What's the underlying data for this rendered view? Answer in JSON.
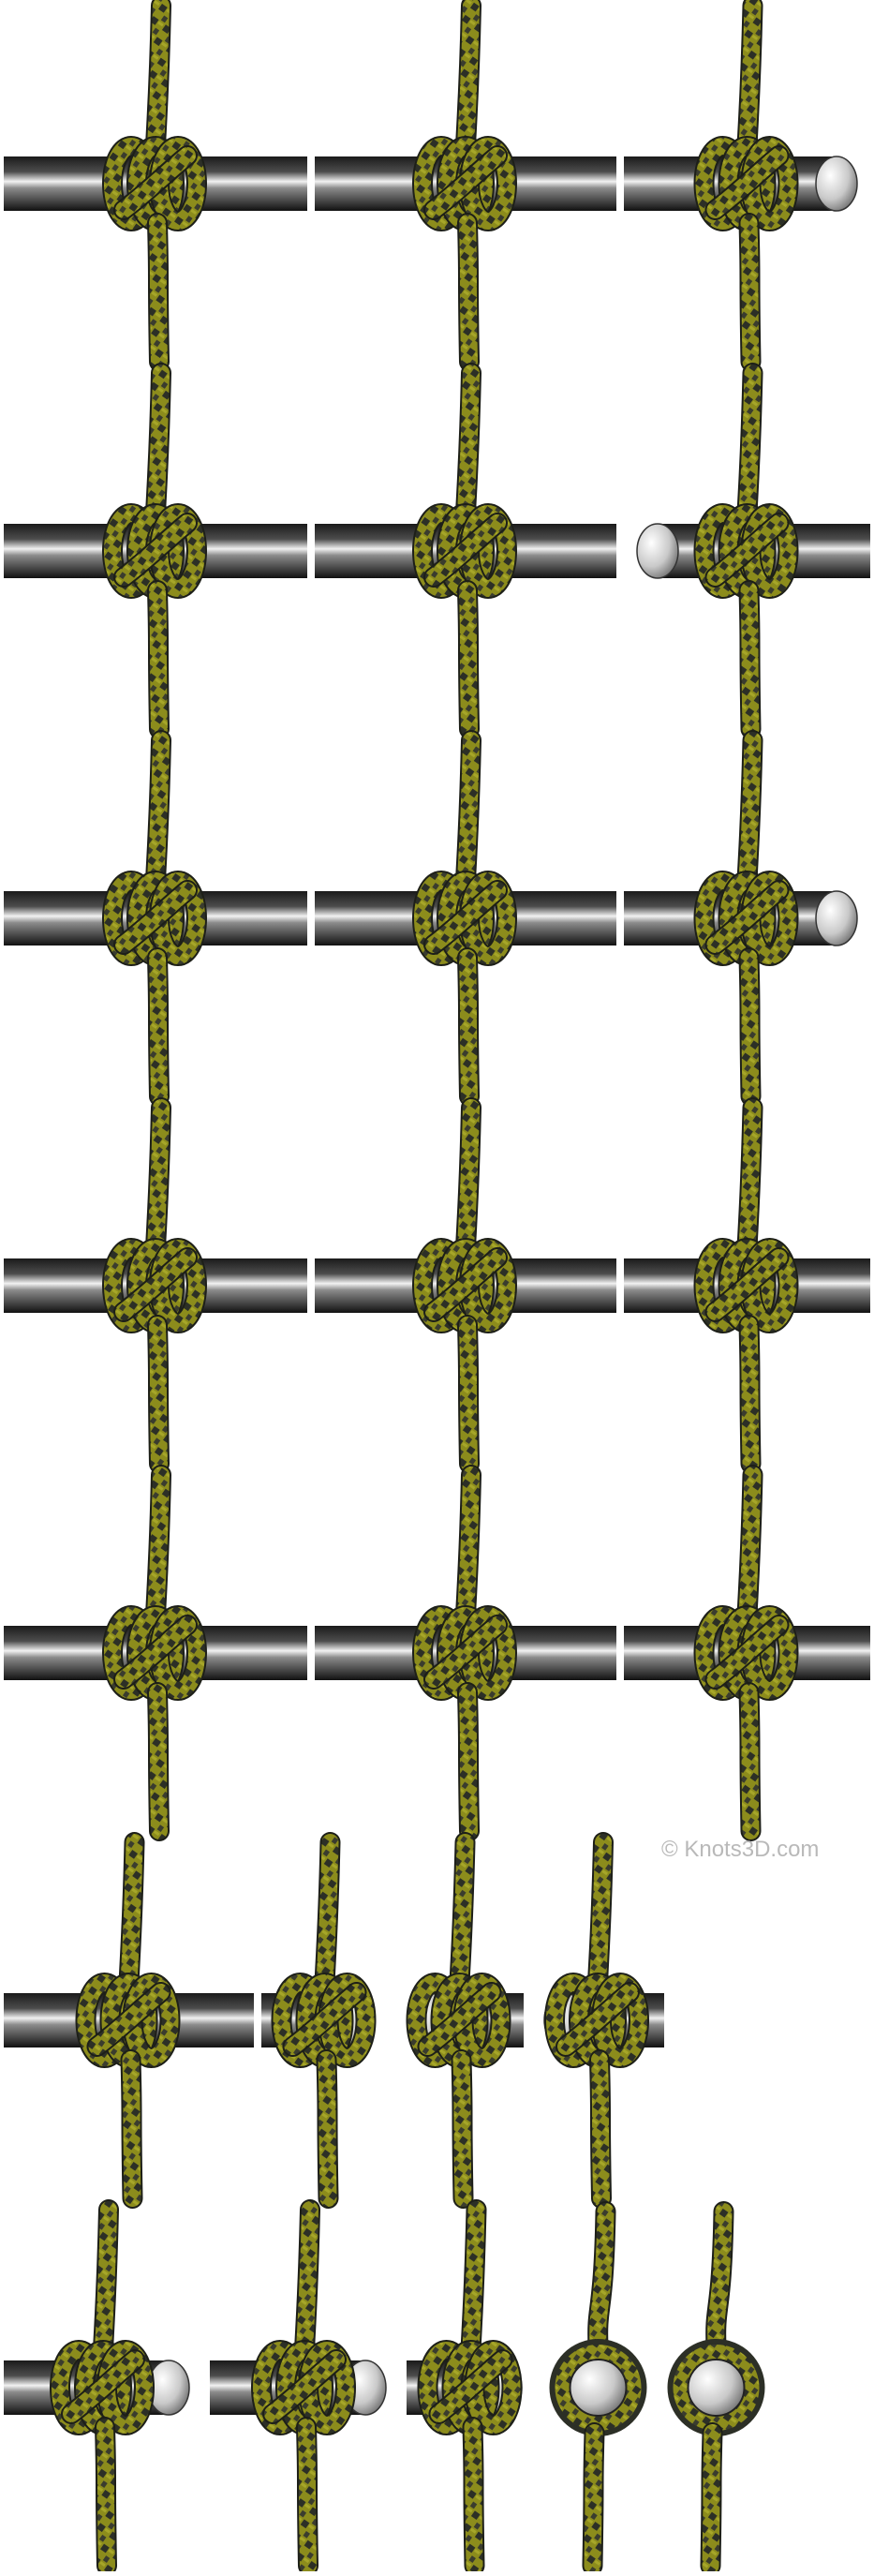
{
  "image": {
    "description_free": true,
    "background_color": "#ffffff",
    "rope_colors": {
      "yellow": "#7a7a14",
      "yellow_light": "#a3a327",
      "dark": "#2c2f26"
    },
    "metal_colors": {
      "dark": "#151515",
      "mid": "#5c5c5c",
      "light": "#ededed"
    }
  },
  "watermark": {
    "text": "© Knots3D.com"
  },
  "rows": [
    {
      "panels": [
        {
          "type": "side"
        },
        {
          "type": "side"
        },
        {
          "type": "end-right"
        }
      ]
    },
    {
      "panels": [
        {
          "type": "side"
        },
        {
          "type": "side"
        },
        {
          "type": "end-left"
        }
      ]
    },
    {
      "panels": [
        {
          "type": "side"
        },
        {
          "type": "side"
        },
        {
          "type": "end-right"
        }
      ]
    },
    {
      "panels": [
        {
          "type": "side"
        },
        {
          "type": "side"
        },
        {
          "type": "side"
        }
      ]
    },
    {
      "panels": [
        {
          "type": "side"
        },
        {
          "type": "side"
        },
        {
          "type": "side"
        }
      ]
    },
    {
      "panels": [
        {
          "type": "side"
        },
        {
          "type": "end-right"
        },
        {
          "type": "end-left"
        },
        {
          "type": "end-left"
        }
      ]
    },
    {
      "panels": [
        {
          "type": "end-right"
        },
        {
          "type": "end-right"
        },
        {
          "type": "end-right"
        },
        {
          "type": "front"
        },
        {
          "type": "front"
        }
      ]
    }
  ]
}
